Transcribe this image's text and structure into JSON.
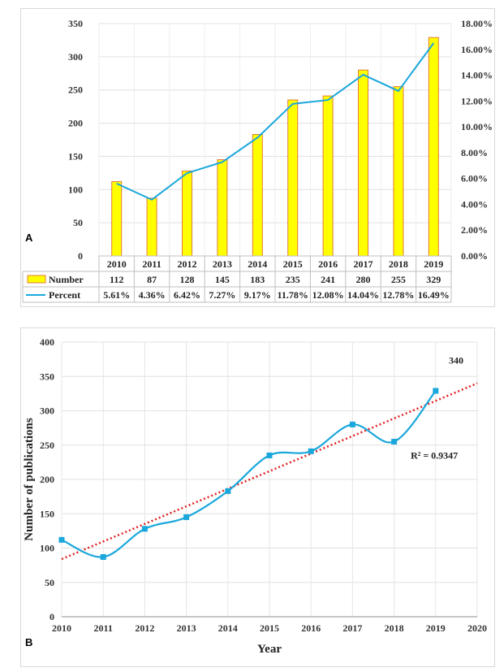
{
  "chart_data": [
    {
      "panel": "A",
      "type": "bar",
      "categories": [
        "2010",
        "2011",
        "2012",
        "2013",
        "2014",
        "2015",
        "2016",
        "2017",
        "2018",
        "2019"
      ],
      "series": [
        {
          "name": "Number",
          "kind": "bar",
          "values": [
            112,
            87,
            128,
            145,
            183,
            235,
            241,
            280,
            255,
            329
          ],
          "labels": [
            "112",
            "87",
            "128",
            "145",
            "183",
            "235",
            "241",
            "280",
            "255",
            "329"
          ]
        },
        {
          "name": "Percent",
          "kind": "line",
          "values": [
            5.61,
            4.36,
            6.42,
            7.27,
            9.17,
            11.78,
            12.08,
            14.04,
            12.78,
            16.49
          ],
          "labels": [
            "5.61%",
            "4.36%",
            "6.42%",
            "7.27%",
            "9.17%",
            "11.78%",
            "12.08%",
            "14.04%",
            "12.78%",
            "16.49%"
          ]
        }
      ],
      "ylim": [
        0,
        350
      ],
      "y_ticks": [
        "0",
        "50",
        "100",
        "150",
        "200",
        "250",
        "300",
        "350"
      ],
      "y2lim": [
        0,
        18
      ],
      "y2_ticks": [
        "0.00%",
        "2.00%",
        "4.00%",
        "6.00%",
        "8.00%",
        "10.00%",
        "12.00%",
        "14.00%",
        "16.00%",
        "18.00%"
      ],
      "colors": {
        "bar_fill": "#ffff00",
        "bar_stroke": "#e07b39",
        "line": "#1aa7dc"
      }
    },
    {
      "panel": "B",
      "type": "line",
      "x": [
        2010,
        2011,
        2012,
        2013,
        2014,
        2015,
        2016,
        2017,
        2018,
        2019
      ],
      "series": [
        {
          "name": "Number of publications",
          "values": [
            112,
            87,
            128,
            145,
            183,
            235,
            241,
            280,
            255,
            329
          ]
        }
      ],
      "trendline": {
        "x": [
          2010,
          2020
        ],
        "y": [
          84,
          340
        ],
        "label": "340",
        "r2_label": "R² = 0.9347"
      },
      "xlabel": "Year",
      "ylabel": "Number of publications",
      "xlim": [
        2010,
        2020
      ],
      "ylim": [
        0,
        400
      ],
      "x_ticks": [
        "2010",
        "2011",
        "2012",
        "2013",
        "2014",
        "2015",
        "2016",
        "2017",
        "2018",
        "2019",
        "2020"
      ],
      "y_ticks": [
        "0",
        "50",
        "100",
        "150",
        "200",
        "250",
        "300",
        "350",
        "400"
      ],
      "colors": {
        "line": "#1aa7dc",
        "marker": "#1aa7dc",
        "trend": "#e02020"
      }
    }
  ],
  "panel_labels": {
    "a": "A",
    "b": "B"
  }
}
